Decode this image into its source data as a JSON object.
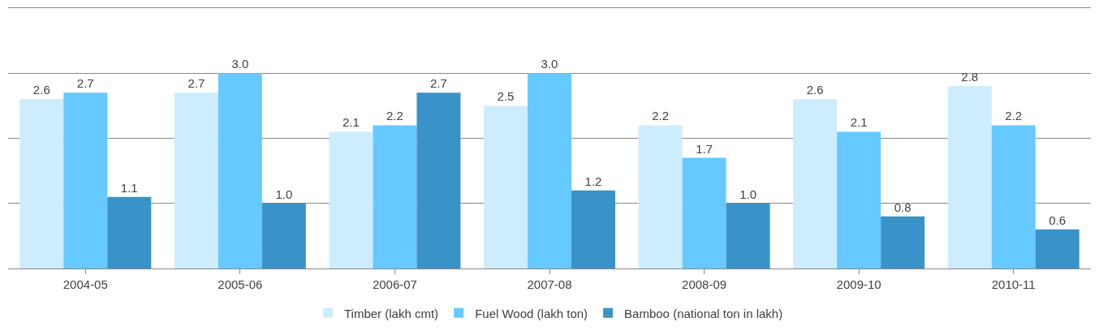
{
  "chart_data": {
    "type": "bar",
    "categories": [
      "2004-05",
      "2005-06",
      "2006-07",
      "2007-08",
      "2008-09",
      "2009-10",
      "2010-11"
    ],
    "series": [
      {
        "name": "Timber (lakh cmt)",
        "color": "#cdedfd",
        "values": [
          2.6,
          2.7,
          2.1,
          2.5,
          2.2,
          2.6,
          2.8
        ],
        "value_labels": [
          "2.6",
          "2.7",
          "2.1",
          "2.5",
          "2.2",
          "2.6",
          "2.8"
        ]
      },
      {
        "name": "Fuel Wood (lakh ton)",
        "color": "#66c9ff",
        "values": [
          2.7,
          3.0,
          2.2,
          3.0,
          1.7,
          2.1,
          2.2
        ],
        "value_labels": [
          "2.7",
          "3.0",
          "2.2",
          "3.0",
          "1.7",
          "2.1",
          "2.2"
        ]
      },
      {
        "name": "Bamboo (national ton in lakh)",
        "color": "#3993c9",
        "values": [
          1.1,
          1.0,
          2.7,
          1.2,
          1.0,
          0.8,
          0.6
        ],
        "value_labels": [
          "1.1",
          "1.0",
          "2.7",
          "1.2",
          "1.0",
          "0.8",
          "0.6"
        ]
      }
    ],
    "ylim": [
      0,
      4
    ],
    "yticks": [
      {
        "value": 0,
        "label": null
      },
      {
        "value": 1,
        "label": null
      },
      {
        "value": 2,
        "label": null
      },
      {
        "value": 3,
        "label": null
      },
      {
        "value": 4,
        "label": null
      }
    ],
    "grid": "y",
    "legend": "bottom",
    "tick_labels": "x"
  }
}
